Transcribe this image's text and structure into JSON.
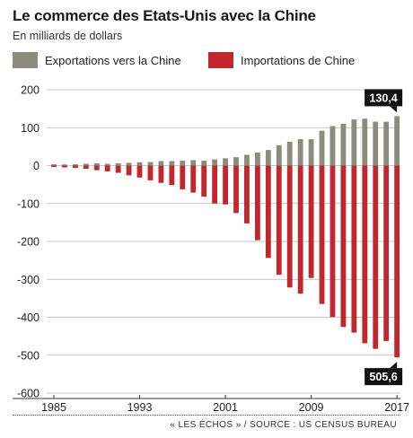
{
  "title": "Le commerce des Etats-Unis avec la Chine",
  "subtitle": "En milliards de dollars",
  "source": "« LES ÉCHOS » / SOURCE : US CENSUS BUREAU",
  "colors": {
    "exports": "#8c8c7e",
    "imports": "#c1272d",
    "callout": "#111111"
  },
  "chart_data": {
    "type": "bar",
    "x": [
      1985,
      1986,
      1987,
      1988,
      1989,
      1990,
      1991,
      1992,
      1993,
      1994,
      1995,
      1996,
      1997,
      1998,
      1999,
      2000,
      2001,
      2002,
      2003,
      2004,
      2005,
      2006,
      2007,
      2008,
      2009,
      2010,
      2011,
      2012,
      2013,
      2014,
      2015,
      2016,
      2017
    ],
    "x_tick_labels": [
      "1985",
      "1993",
      "2001",
      "2009",
      "2017"
    ],
    "x_ticks": [
      1985,
      1993,
      2001,
      2009,
      2017
    ],
    "y_ticks": [
      200,
      100,
      0,
      -100,
      -200,
      -300,
      -400,
      -500,
      -600
    ],
    "ylim": [
      -600,
      200
    ],
    "grid": "horizontal",
    "legend_position": "top-left",
    "series": [
      {
        "name": "Exportations vers la Chine",
        "values": [
          3.9,
          3.1,
          3.5,
          5.0,
          5.8,
          4.8,
          6.3,
          7.4,
          8.8,
          9.3,
          11.8,
          12.0,
          12.9,
          14.3,
          13.1,
          16.3,
          19.2,
          22.1,
          28.4,
          34.4,
          41.2,
          53.7,
          62.9,
          69.7,
          69.5,
          91.9,
          104.1,
          110.5,
          121.7,
          123.7,
          115.9,
          115.6,
          130.4
        ]
      },
      {
        "name": "Importations de Chine",
        "values": [
          -3.9,
          -4.8,
          -6.3,
          -8.5,
          -12.0,
          -15.2,
          -19.0,
          -25.7,
          -31.5,
          -38.8,
          -45.5,
          -51.5,
          -62.6,
          -71.2,
          -81.8,
          -100.0,
          -102.3,
          -125.2,
          -152.4,
          -196.7,
          -243.5,
          -287.8,
          -321.4,
          -337.8,
          -296.4,
          -364.9,
          -399.4,
          -425.6,
          -440.4,
          -468.5,
          -483.2,
          -462.4,
          -505.6
        ]
      }
    ],
    "annotations": [
      {
        "label": "130,4",
        "series": 0,
        "index": 32
      },
      {
        "label": "505,6",
        "series": 1,
        "index": 32
      }
    ]
  }
}
